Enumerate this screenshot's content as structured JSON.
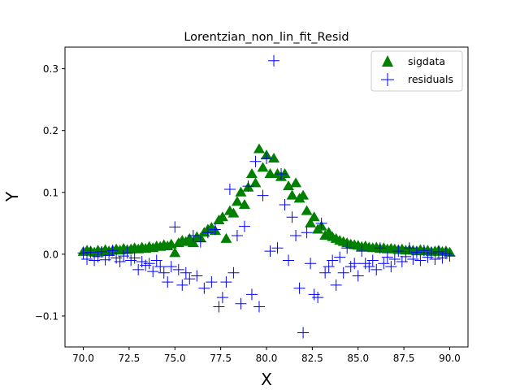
{
  "chart_data": {
    "type": "scatter",
    "title": "Lorentzian_non_lin_fit_Resid",
    "xlabel": "X",
    "ylabel": "Y",
    "xlim": [
      69.0,
      91.0
    ],
    "ylim": [
      -0.15,
      0.335
    ],
    "xticks": [
      70.0,
      72.5,
      75.0,
      77.5,
      80.0,
      82.5,
      85.0,
      87.5,
      90.0
    ],
    "xtick_labels": [
      "70.0",
      "72.5",
      "75.0",
      "77.5",
      "80.0",
      "82.5",
      "85.0",
      "87.5",
      "90.0"
    ],
    "yticks": [
      -0.1,
      0.0,
      0.1,
      0.2,
      0.3
    ],
    "ytick_labels": [
      "−0.1",
      "0.0",
      "0.1",
      "0.2",
      "0.3"
    ],
    "grid": false,
    "legend": {
      "position": "top-right",
      "entries": [
        "sigdata",
        "residuals"
      ]
    },
    "series": [
      {
        "name": "sigdata",
        "marker": "triangle",
        "color": "#008000",
        "points": [
          [
            70.0,
            0.004
          ],
          [
            70.2,
            0.006
          ],
          [
            70.4,
            0.005
          ],
          [
            70.6,
            0.003
          ],
          [
            70.8,
            0.006
          ],
          [
            71.0,
            0.004
          ],
          [
            71.2,
            0.007
          ],
          [
            71.4,
            0.005
          ],
          [
            71.6,
            0.006
          ],
          [
            71.8,
            0.008
          ],
          [
            72.0,
            0.006
          ],
          [
            72.2,
            0.009
          ],
          [
            72.4,
            0.007
          ],
          [
            72.6,
            0.008
          ],
          [
            72.8,
            0.01
          ],
          [
            73.0,
            0.008
          ],
          [
            73.2,
            0.011
          ],
          [
            73.4,
            0.009
          ],
          [
            73.6,
            0.012
          ],
          [
            73.8,
            0.01
          ],
          [
            74.0,
            0.013
          ],
          [
            74.2,
            0.012
          ],
          [
            74.4,
            0.015
          ],
          [
            74.6,
            0.013
          ],
          [
            74.8,
            0.016
          ],
          [
            75.0,
            0.002
          ],
          [
            75.2,
            0.018
          ],
          [
            75.4,
            0.022
          ],
          [
            75.6,
            0.02
          ],
          [
            75.8,
            0.025
          ],
          [
            76.0,
            0.018
          ],
          [
            76.2,
            0.028
          ],
          [
            76.4,
            0.026
          ],
          [
            76.6,
            0.035
          ],
          [
            76.8,
            0.04
          ],
          [
            77.0,
            0.043
          ],
          [
            77.2,
            0.038
          ],
          [
            77.4,
            0.055
          ],
          [
            77.6,
            0.06
          ],
          [
            77.8,
            0.025
          ],
          [
            78.0,
            0.07
          ],
          [
            78.2,
            0.066
          ],
          [
            78.4,
            0.085
          ],
          [
            78.6,
            0.1
          ],
          [
            78.8,
            0.08
          ],
          [
            79.0,
            0.108
          ],
          [
            79.2,
            0.13
          ],
          [
            79.4,
            0.115
          ],
          [
            79.6,
            0.17
          ],
          [
            79.8,
            0.14
          ],
          [
            80.0,
            0.16
          ],
          [
            80.2,
            0.13
          ],
          [
            80.4,
            0.155
          ],
          [
            80.6,
            0.13
          ],
          [
            80.8,
            0.125
          ],
          [
            81.0,
            0.13
          ],
          [
            81.2,
            0.11
          ],
          [
            81.4,
            0.095
          ],
          [
            81.6,
            0.115
          ],
          [
            81.8,
            0.09
          ],
          [
            82.0,
            0.095
          ],
          [
            82.2,
            0.07
          ],
          [
            82.4,
            0.05
          ],
          [
            82.6,
            0.06
          ],
          [
            82.8,
            0.04
          ],
          [
            83.0,
            0.045
          ],
          [
            83.2,
            0.03
          ],
          [
            83.4,
            0.035
          ],
          [
            83.6,
            0.028
          ],
          [
            83.8,
            0.025
          ],
          [
            84.0,
            0.022
          ],
          [
            84.2,
            0.02
          ],
          [
            84.4,
            0.018
          ],
          [
            84.6,
            0.016
          ],
          [
            84.8,
            0.015
          ],
          [
            85.0,
            0.014
          ],
          [
            85.2,
            0.012
          ],
          [
            85.4,
            0.013
          ],
          [
            85.6,
            0.011
          ],
          [
            85.8,
            0.01
          ],
          [
            86.0,
            0.011
          ],
          [
            86.2,
            0.009
          ],
          [
            86.4,
            0.01
          ],
          [
            86.6,
            0.008
          ],
          [
            86.8,
            0.009
          ],
          [
            87.0,
            0.008
          ],
          [
            87.2,
            0.007
          ],
          [
            87.4,
            0.008
          ],
          [
            87.6,
            0.006
          ],
          [
            87.8,
            0.007
          ],
          [
            88.0,
            0.006
          ],
          [
            88.2,
            0.005
          ],
          [
            88.4,
            0.007
          ],
          [
            88.6,
            0.005
          ],
          [
            88.8,
            0.006
          ],
          [
            89.0,
            0.004
          ],
          [
            89.2,
            0.005
          ],
          [
            89.4,
            0.006
          ],
          [
            89.6,
            0.004
          ],
          [
            89.8,
            0.005
          ],
          [
            90.0,
            0.003
          ]
        ]
      },
      {
        "name": "residuals",
        "marker": "plus",
        "color": "#0000ff",
        "points": [
          [
            70.0,
            0.002
          ],
          [
            70.2,
            -0.008
          ],
          [
            70.4,
            0.003
          ],
          [
            70.6,
            -0.01
          ],
          [
            70.8,
            -0.004
          ],
          [
            71.0,
            0.004
          ],
          [
            71.2,
            -0.009
          ],
          [
            71.4,
            -0.002
          ],
          [
            71.6,
            0.006
          ],
          [
            71.8,
            -0.006
          ],
          [
            72.0,
            -0.012
          ],
          [
            72.2,
            -0.003
          ],
          [
            72.4,
            0.002
          ],
          [
            72.6,
            -0.01
          ],
          [
            72.8,
            -0.006
          ],
          [
            73.0,
            -0.025
          ],
          [
            73.2,
            -0.012
          ],
          [
            73.4,
            -0.018
          ],
          [
            73.6,
            -0.015
          ],
          [
            73.8,
            -0.028
          ],
          [
            74.0,
            -0.01
          ],
          [
            74.2,
            -0.02
          ],
          [
            74.4,
            -0.03
          ],
          [
            74.6,
            -0.045
          ],
          [
            74.8,
            -0.02
          ],
          [
            75.0,
            0.044
          ],
          [
            75.2,
            -0.025
          ],
          [
            75.4,
            -0.05
          ],
          [
            75.6,
            -0.03
          ],
          [
            75.8,
            -0.04
          ],
          [
            76.0,
            0.03
          ],
          [
            76.2,
            -0.035
          ],
          [
            76.4,
            0.02
          ],
          [
            76.6,
            -0.055
          ],
          [
            76.8,
            0.035
          ],
          [
            77.0,
            -0.045
          ],
          [
            77.2,
            0.04
          ],
          [
            77.4,
            -0.085
          ],
          [
            77.6,
            -0.07
          ],
          [
            77.8,
            -0.045
          ],
          [
            78.0,
            0.105
          ],
          [
            78.2,
            -0.03
          ],
          [
            78.4,
            0.03
          ],
          [
            78.6,
            -0.08
          ],
          [
            78.8,
            0.045
          ],
          [
            79.0,
            0.11
          ],
          [
            79.2,
            -0.065
          ],
          [
            79.4,
            0.15
          ],
          [
            79.6,
            -0.085
          ],
          [
            79.8,
            0.095
          ],
          [
            80.0,
            0.155
          ],
          [
            80.2,
            0.005
          ],
          [
            80.4,
            0.313
          ],
          [
            80.6,
            0.01
          ],
          [
            80.8,
            0.13
          ],
          [
            81.0,
            0.08
          ],
          [
            81.2,
            -0.01
          ],
          [
            81.4,
            0.06
          ],
          [
            81.6,
            0.03
          ],
          [
            81.8,
            -0.055
          ],
          [
            82.0,
            -0.127
          ],
          [
            82.2,
            0.035
          ],
          [
            82.4,
            -0.015
          ],
          [
            82.6,
            -0.065
          ],
          [
            82.8,
            -0.07
          ],
          [
            83.0,
            0.05
          ],
          [
            83.2,
            -0.03
          ],
          [
            83.4,
            -0.02
          ],
          [
            83.6,
            -0.01
          ],
          [
            83.8,
            -0.05
          ],
          [
            84.0,
            -0.005
          ],
          [
            84.2,
            -0.03
          ],
          [
            84.4,
            0.01
          ],
          [
            84.6,
            -0.02
          ],
          [
            84.8,
            -0.015
          ],
          [
            85.0,
            -0.035
          ],
          [
            85.2,
            0.005
          ],
          [
            85.4,
            -0.015
          ],
          [
            85.6,
            -0.02
          ],
          [
            85.8,
            -0.01
          ],
          [
            86.0,
            -0.025
          ],
          [
            86.2,
            0.01
          ],
          [
            86.4,
            -0.015
          ],
          [
            86.6,
            -0.005
          ],
          [
            86.8,
            -0.02
          ],
          [
            87.0,
            -0.008
          ],
          [
            87.2,
            0.005
          ],
          [
            87.4,
            -0.012
          ],
          [
            87.6,
            -0.004
          ],
          [
            87.8,
            0.01
          ],
          [
            88.0,
            -0.008
          ],
          [
            88.2,
            0.003
          ],
          [
            88.4,
            -0.01
          ],
          [
            88.6,
            0.006
          ],
          [
            88.8,
            -0.005
          ],
          [
            89.0,
            0.002
          ],
          [
            89.2,
            -0.008
          ],
          [
            89.4,
            0.004
          ],
          [
            89.6,
            -0.006
          ],
          [
            89.8,
            0.001
          ],
          [
            90.0,
            -0.003
          ]
        ]
      }
    ]
  }
}
